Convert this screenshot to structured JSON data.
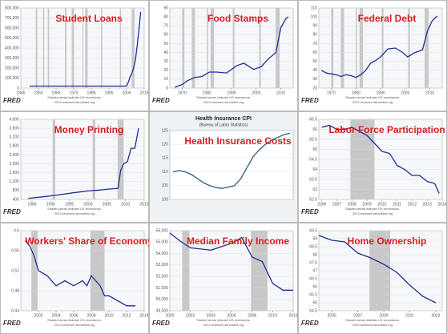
{
  "logo": "FRED",
  "footer_lines": [
    "Shaded areas indicate US recessions.",
    "2013 research.stlouisfed.org"
  ],
  "chart_data": [
    {
      "type": "line",
      "title": "Student Loans",
      "color": "#1f2e96",
      "x": [
        1950,
        2005,
        2006,
        2007,
        2008,
        2009,
        2010,
        2011,
        2012,
        2013
      ],
      "values": [
        20000,
        20000,
        60000,
        110000,
        150000,
        200000,
        280000,
        420000,
        580000,
        760000
      ],
      "xlim": [
        1945,
        2015
      ],
      "xticks": [
        1945,
        1955,
        1965,
        1975,
        1985,
        1995,
        2005,
        2015
      ],
      "ylim": [
        0,
        800000
      ],
      "yticks": [
        0,
        {
          "value": 100000,
          "label": "100,000"
        },
        {
          "value": 200000,
          "label": "200,000"
        },
        {
          "value": 300000,
          "label": "300,000"
        },
        {
          "value": 400000,
          "label": "400,000"
        },
        {
          "value": 500000,
          "label": "500,000"
        },
        {
          "value": 600000,
          "label": "600,000"
        },
        {
          "value": 700000,
          "label": "700,000"
        },
        {
          "value": 800000,
          "label": "800,000"
        }
      ],
      "recessions": [
        [
          1953.5,
          1954.4
        ],
        [
          1957.6,
          1958.3
        ],
        [
          1960.3,
          1961.1
        ],
        [
          1970,
          1970.9
        ],
        [
          1973.9,
          1975.2
        ],
        [
          1980,
          1980.5
        ],
        [
          1981.5,
          1982.9
        ],
        [
          1990.5,
          1991.2
        ],
        [
          2001.2,
          2001.9
        ],
        [
          2007.9,
          2009.5
        ]
      ]
    },
    {
      "type": "line",
      "title": "Food Stamps",
      "color": "#1f2e96",
      "x": [
        1967,
        1970,
        1972,
        1975,
        1978,
        1981,
        1984,
        1988,
        1992,
        1995,
        1999,
        2002,
        2005,
        2008,
        2010,
        2012,
        2013
      ],
      "values": [
        1,
        4,
        8,
        12,
        13,
        18,
        18,
        17,
        25,
        28,
        21,
        24,
        33,
        40,
        68,
        78,
        80
      ],
      "xlim": [
        1965,
        2015
      ],
      "xticks": [
        1970,
        1980,
        1990,
        2000,
        2010
      ],
      "ylim": [
        0,
        90
      ],
      "yticks": [
        0,
        10,
        20,
        30,
        40,
        50,
        60,
        70,
        80,
        90
      ],
      "recessions": [
        [
          1970,
          1970.9
        ],
        [
          1973.9,
          1975.2
        ],
        [
          1980,
          1980.5
        ],
        [
          1981.5,
          1982.9
        ],
        [
          1990.5,
          1991.2
        ],
        [
          2001.2,
          2001.9
        ],
        [
          2007.9,
          2009.5
        ]
      ]
    },
    {
      "type": "line",
      "title": "Federal Debt",
      "color": "#1f2e96",
      "x": [
        1966,
        1968,
        1970,
        1972,
        1974,
        1976,
        1978,
        1980,
        1982,
        1984,
        1986,
        1988,
        1990,
        1993,
        1996,
        1999,
        2001,
        2004,
        2007,
        2009,
        2011,
        2013
      ],
      "values": [
        40,
        37,
        36,
        35,
        33,
        35,
        34,
        32,
        35,
        40,
        48,
        51,
        55,
        64,
        65,
        60,
        55,
        60,
        63,
        84,
        96,
        101
      ],
      "xlim": [
        1965,
        2015
      ],
      "xticks": [
        1970,
        1980,
        1990,
        2000,
        2010
      ],
      "ylim": [
        20,
        110
      ],
      "yticks": [
        20,
        30,
        40,
        50,
        60,
        70,
        80,
        90,
        100,
        110
      ],
      "recessions": [
        [
          1970,
          1970.9
        ],
        [
          1973.9,
          1975.2
        ],
        [
          1980,
          1980.5
        ],
        [
          1981.5,
          1982.9
        ],
        [
          1990.5,
          1991.2
        ],
        [
          2001.2,
          2001.9
        ],
        [
          2007.9,
          2009.5
        ]
      ]
    },
    {
      "type": "line",
      "title": "Money Printing",
      "color": "#1f2e96",
      "x": [
        1984,
        1988,
        1992,
        1996,
        2000,
        2003,
        2006,
        2008,
        2008.7,
        2009.5,
        2010.5,
        2011.5,
        2012.5,
        2013.5
      ],
      "values": [
        450,
        520,
        600,
        700,
        780,
        820,
        870,
        900,
        1700,
        2000,
        2100,
        2700,
        2700,
        3600
      ],
      "xlim": [
        1982,
        2015
      ],
      "xticks": [
        1985,
        1990,
        1995,
        2000,
        2005,
        2010,
        2015
      ],
      "ylim": [
        400,
        4000
      ],
      "yticks": [
        400,
        800,
        {
          "value": 1200,
          "label": "1,200"
        },
        {
          "value": 1600,
          "label": "1,600"
        },
        {
          "value": 2000,
          "label": "2,000"
        },
        {
          "value": 2400,
          "label": "2,400"
        },
        {
          "value": 2800,
          "label": "2,800"
        },
        {
          "value": 3200,
          "label": "3,200"
        },
        {
          "value": 3600,
          "label": "3,600"
        },
        {
          "value": 4000,
          "label": "4,000"
        }
      ],
      "recessions": [
        [
          1990.5,
          1991.2
        ],
        [
          2001.2,
          2001.9
        ],
        [
          2007.9,
          2009.5
        ]
      ]
    },
    {
      "type": "line",
      "title": "Health Insurance Costs",
      "header": "Health Insurance CPI",
      "subtitle": "(Bureau of Labor Statistics)",
      "color": "#2a5f7e",
      "categories": [
        null,
        null,
        null,
        null,
        null,
        null,
        null,
        null,
        null,
        null,
        null,
        null,
        null,
        null,
        null,
        null,
        null,
        null,
        null,
        null
      ],
      "values": [
        110,
        110.5,
        110,
        109,
        107.5,
        106,
        105,
        104.3,
        104,
        104.5,
        105,
        107.5,
        111.5,
        115.5,
        118,
        120,
        121.5,
        122.5,
        123.5,
        124
      ],
      "ylim": [
        100,
        125
      ],
      "yticks": [
        100,
        105,
        110,
        115,
        120,
        125
      ],
      "recessions": []
    },
    {
      "type": "line",
      "title": "Labor Force Participation",
      "color": "#1f2e96",
      "x": [
        2006,
        2006.5,
        2007,
        2007.5,
        2008,
        2008.5,
        2009,
        2009.5,
        2010,
        2010.5,
        2011,
        2011.5,
        2012,
        2012.5,
        2013,
        2013.5,
        2013.8
      ],
      "values": [
        66.1,
        66.2,
        66.0,
        66.0,
        66.1,
        65.9,
        65.7,
        65.3,
        64.9,
        64.8,
        64.2,
        64.0,
        63.7,
        63.7,
        63.4,
        63.3,
        62.8
      ],
      "xlim": [
        2005.8,
        2014
      ],
      "xticks": [
        2006,
        2007,
        2008,
        2009,
        2010,
        2011,
        2012,
        2013,
        2014
      ],
      "ylim": [
        62.5,
        66.5
      ],
      "yticks": [
        62.5,
        63,
        63.5,
        64,
        64.5,
        65,
        65.5,
        66,
        66.5
      ],
      "recessions": [
        [
          2007.9,
          2009.5
        ]
      ]
    },
    {
      "type": "line",
      "title": "Workers' Share of Economy",
      "color": "#1f2e96",
      "x": [
        2000.5,
        2001,
        2001.5,
        2002,
        2003,
        2004,
        2005,
        2006,
        2007,
        2007.5,
        2008,
        2008.5,
        2009,
        2009.5,
        2010,
        2011,
        2012,
        2013
      ],
      "values": [
        0.58,
        0.57,
        0.55,
        0.52,
        0.51,
        0.49,
        0.5,
        0.49,
        0.5,
        0.49,
        0.51,
        0.5,
        0.49,
        0.47,
        0.47,
        0.46,
        0.45,
        0.45
      ],
      "xlim": [
        2000,
        2014
      ],
      "xticks": [
        2002,
        2004,
        2006,
        2008,
        2010,
        2012,
        2014
      ],
      "ylim": [
        0.44,
        0.6
      ],
      "yticks": [
        0.44,
        0.48,
        0.52,
        0.56,
        0.6
      ],
      "recessions": [
        [
          2001.2,
          2001.9
        ],
        [
          2007.9,
          2009.5
        ]
      ]
    },
    {
      "type": "line",
      "title": "Median Family Income",
      "color": "#1f2e96",
      "x": [
        2000,
        2001,
        2002,
        2003,
        2004,
        2005,
        2006,
        2007,
        2008,
        2009,
        2010,
        2011,
        2012
      ],
      "values": [
        55800,
        55100,
        54500,
        54400,
        54300,
        54600,
        54900,
        55400,
        53700,
        53300,
        51400,
        50800,
        50800
      ],
      "xlim": [
        2000,
        2012
      ],
      "xticks": [
        2000,
        2002,
        2004,
        2006,
        2008,
        2010,
        2012
      ],
      "ylim": [
        49000,
        56000
      ],
      "yticks": [
        {
          "value": 49000,
          "label": "49,000"
        },
        {
          "value": 50000,
          "label": "50,000"
        },
        {
          "value": 51000,
          "label": "51,000"
        },
        {
          "value": 52000,
          "label": "52,000"
        },
        {
          "value": 53000,
          "label": "53,000"
        },
        {
          "value": 54000,
          "label": "54,000"
        },
        {
          "value": 55000,
          "label": "55,000"
        },
        {
          "value": 56000,
          "label": "56,000"
        }
      ],
      "recessions": [
        [
          2001.2,
          2001.9
        ],
        [
          2007.9,
          2009.5
        ]
      ]
    },
    {
      "type": "line",
      "title": "Home Ownership",
      "color": "#1f2e96",
      "x": [
        2004,
        2005,
        2006,
        2007,
        2008,
        2009,
        2010,
        2011,
        2012,
        2013
      ],
      "values": [
        69.2,
        68.9,
        68.8,
        68.1,
        67.8,
        67.4,
        66.9,
        66.1,
        65.4,
        65.0
      ],
      "xlim": [
        2004,
        2013.5
      ],
      "xticks": [
        2005,
        2007,
        2009,
        2011,
        2013
      ],
      "ylim": [
        64.5,
        69.5
      ],
      "yticks": [
        64.5,
        65,
        65.5,
        66,
        66.5,
        67,
        67.5,
        68,
        68.5,
        69,
        69.5
      ],
      "recessions": [
        [
          2007.9,
          2009.5
        ]
      ]
    }
  ]
}
